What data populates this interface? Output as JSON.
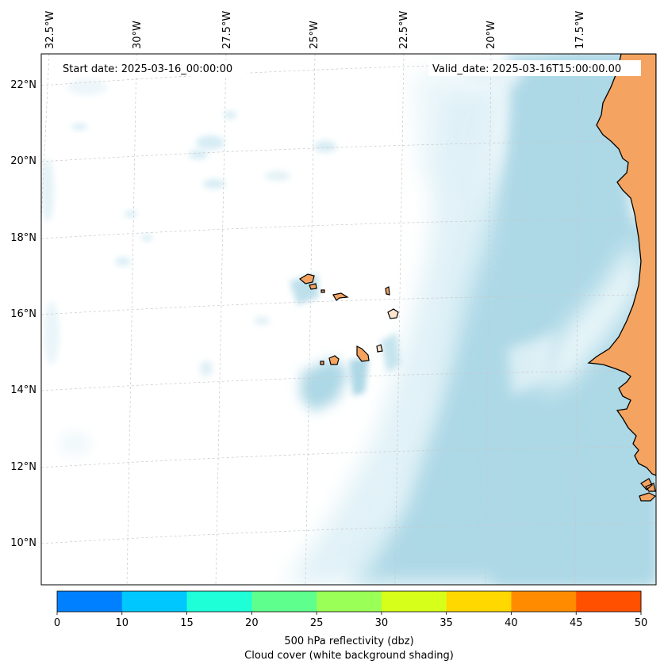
{
  "header": {
    "start_date": "Start date: 2025-03-16_00:00:00",
    "valid_date": "Valid_date: 2025-03-16T15:00:00.00"
  },
  "longitude_labels": [
    "32.5°W",
    "30°W",
    "27.5°W",
    "25°W",
    "22.5°W",
    "20°W",
    "17.5°W"
  ],
  "latitude_labels": [
    "22°N",
    "20°N",
    "18°N",
    "16°N",
    "14°N",
    "12°N",
    "10°N"
  ],
  "colorbar": {
    "ticks": [
      "0",
      "10",
      "15",
      "20",
      "25",
      "30",
      "35",
      "40",
      "45",
      "50"
    ],
    "colors": [
      "#0080ff",
      "#00c8ff",
      "#1effd8",
      "#5eff8c",
      "#9aff56",
      "#d6ff1a",
      "#ffd800",
      "#ff8c00",
      "#ff5000"
    ],
    "label_line1": "500 hPa reflectivity (dbz)",
    "label_line2": "Cloud cover (white background shading)"
  },
  "colors": {
    "land": "#f4a460",
    "cloud": "#add8e6",
    "grid": "#c8c8c8"
  }
}
